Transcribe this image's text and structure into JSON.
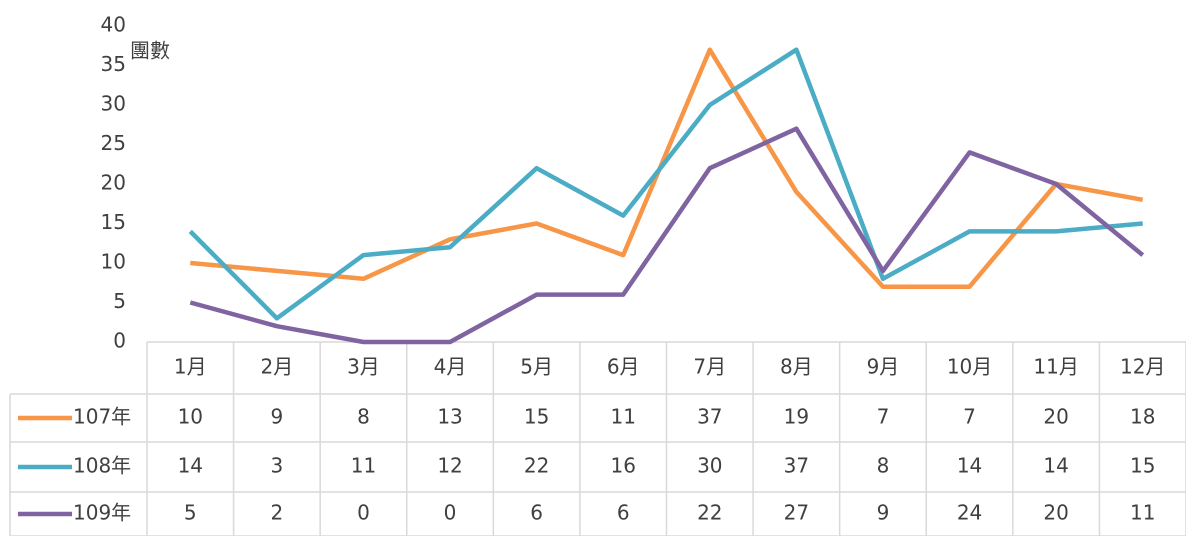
{
  "chart_data": {
    "type": "line",
    "y_label": "團數",
    "categories": [
      "1月",
      "2月",
      "3月",
      "4月",
      "5月",
      "6月",
      "7月",
      "8月",
      "9月",
      "10月",
      "11月",
      "12月"
    ],
    "series": [
      {
        "name": "107年",
        "color": "#f79646",
        "values": [
          10,
          9,
          8,
          13,
          15,
          11,
          37,
          19,
          7,
          7,
          20,
          18
        ]
      },
      {
        "name": "108年",
        "color": "#4bacc6",
        "values": [
          14,
          3,
          11,
          12,
          22,
          16,
          30,
          37,
          8,
          14,
          14,
          15
        ]
      },
      {
        "name": "109年",
        "color": "#8064a2",
        "values": [
          5,
          2,
          0,
          0,
          6,
          6,
          22,
          27,
          9,
          24,
          20,
          11
        ]
      }
    ],
    "ylim": [
      0,
      40
    ],
    "yticks": [
      0,
      5,
      10,
      15,
      20,
      25,
      30,
      35,
      40
    ],
    "data_table": true
  }
}
